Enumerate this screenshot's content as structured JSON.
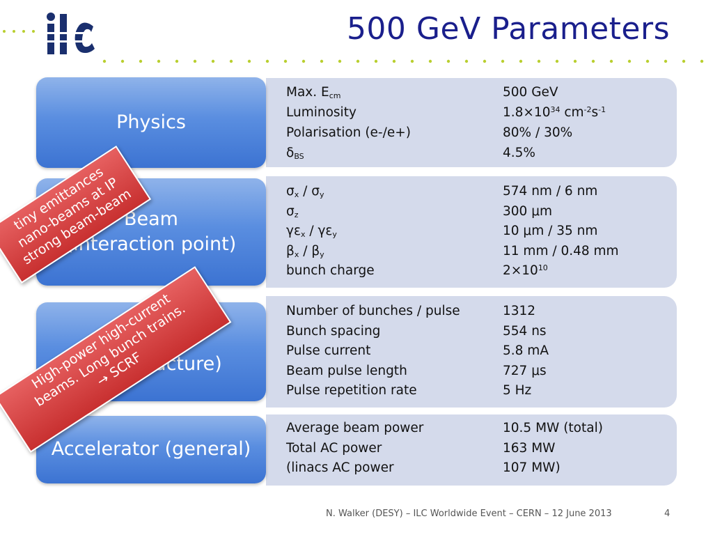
{
  "slide": {
    "title": "500 GeV Parameters",
    "logo_text": "ilc",
    "footer": "N. Walker (DESY) – ILC Worldwide Event – CERN – 12 June 2013",
    "page_number": "4"
  },
  "categories": [
    {
      "lines": [
        "Physics"
      ]
    },
    {
      "lines": [
        "Beam",
        "(interaction point)"
      ]
    },
    {
      "lines": [
        "(structure)"
      ]
    },
    {
      "lines": [
        "Accelerator (general)"
      ]
    }
  ],
  "physics": [
    {
      "k1": "Max. E",
      "k1sub": "cm",
      "v": "500 GeV"
    },
    {
      "k1": "Luminosity",
      "v1": "1.8×10",
      "vsup1": "34",
      "v2": " cm",
      "vsup2": "-2",
      "v3": "s",
      "vsup3": "-1"
    },
    {
      "k1": "Polarisation (e-/e+)",
      "v": "80% / 30%"
    },
    {
      "k1": "δ",
      "k1sub": "BS",
      "v": "4.5%"
    }
  ],
  "beam": [
    {
      "k1": "σ",
      "k1sub": "x",
      "k2": " / σ",
      "k2sub": "y",
      "v": "574 nm / 6 nm"
    },
    {
      "k1": "σ",
      "k1sub": "z",
      "v": "300 μm"
    },
    {
      "k1": "γε",
      "k1sub": "x",
      "k2": " / γε",
      "k2sub": "y",
      "v": "10 μm / 35 nm"
    },
    {
      "k1": "β",
      "k1sub": "x",
      "k2": " / β",
      "k2sub": "y",
      "v": "11 mm / 0.48 mm"
    },
    {
      "k1": "bunch charge",
      "v1": "2×10",
      "vsup1": "10"
    }
  ],
  "structure": [
    {
      "k": "Number of bunches / pulse",
      "v": "1312"
    },
    {
      "k": "Bunch spacing",
      "v": "554 ns"
    },
    {
      "k": "Pulse current",
      "v": "5.8 mA"
    },
    {
      "k": "Beam pulse length",
      "v": "727 μs"
    },
    {
      "k": "Pulse repetition rate",
      "v": "5 Hz"
    }
  ],
  "general": [
    {
      "k": "Average beam power",
      "v": "10.5 MW (total)"
    },
    {
      "k": "Total AC power",
      "v": "163 MW"
    },
    {
      "k": "(linacs AC power",
      "v": "107 MW)"
    }
  ],
  "banners": {
    "first": [
      "tiny emittances",
      "nano-beams at IP",
      "strong beam-beam"
    ],
    "second": [
      "High-power high-current",
      "beams. Long bunch trains.",
      "→ SCRF"
    ]
  },
  "colors": {
    "title": "#1a1f8c",
    "panel": "#d4daeb",
    "category": "#4a82db",
    "banner": "#d94444"
  }
}
